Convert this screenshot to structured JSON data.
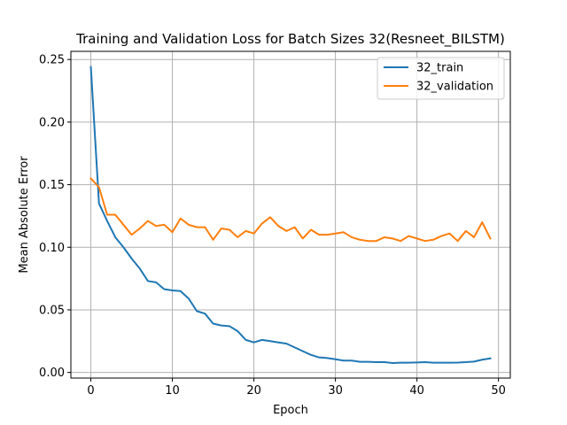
{
  "chart_data": {
    "type": "line",
    "title": "Training and Validation Loss for Batch Sizes 32(Resneet_BILSTM)",
    "xlabel": "Epoch",
    "ylabel": "Mean Absolute Error",
    "xlim": [
      -2.45,
      51.45
    ],
    "ylim": [
      -0.0045,
      0.2565
    ],
    "xticks": [
      0,
      10,
      20,
      30,
      40,
      50
    ],
    "yticks": [
      0.0,
      0.05,
      0.1,
      0.15,
      0.2,
      0.25
    ],
    "ytick_labels": [
      "0.00",
      "0.05",
      "0.10",
      "0.15",
      "0.20",
      "0.25"
    ],
    "grid": true,
    "legend_position": "upper right",
    "x": [
      0,
      1,
      2,
      3,
      4,
      5,
      6,
      7,
      8,
      9,
      10,
      11,
      12,
      13,
      14,
      15,
      16,
      17,
      18,
      19,
      20,
      21,
      22,
      23,
      24,
      25,
      26,
      27,
      28,
      29,
      30,
      31,
      32,
      33,
      34,
      35,
      36,
      37,
      38,
      39,
      40,
      41,
      42,
      43,
      44,
      45,
      46,
      47,
      48,
      49
    ],
    "series": [
      {
        "name": "32_train",
        "color": "#1f77b4",
        "values": [
          0.244,
          0.135,
          0.121,
          0.108,
          0.1,
          0.091,
          0.083,
          0.073,
          0.072,
          0.0665,
          0.0655,
          0.065,
          0.059,
          0.049,
          0.047,
          0.039,
          0.0375,
          0.037,
          0.033,
          0.026,
          0.024,
          0.026,
          0.025,
          0.024,
          0.023,
          0.02,
          0.017,
          0.014,
          0.012,
          0.0115,
          0.0105,
          0.0095,
          0.0095,
          0.0085,
          0.0085,
          0.0082,
          0.0082,
          0.0075,
          0.0078,
          0.0078,
          0.008,
          0.0082,
          0.0078,
          0.0078,
          0.0078,
          0.0079,
          0.0082,
          0.0087,
          0.0102,
          0.0112
        ]
      },
      {
        "name": "32_validation",
        "color": "#ff7f0e",
        "values": [
          0.155,
          0.148,
          0.126,
          0.126,
          0.118,
          0.11,
          0.115,
          0.121,
          0.117,
          0.118,
          0.112,
          0.123,
          0.118,
          0.116,
          0.116,
          0.106,
          0.115,
          0.114,
          0.108,
          0.113,
          0.111,
          0.119,
          0.124,
          0.117,
          0.113,
          0.116,
          0.107,
          0.114,
          0.11,
          0.11,
          0.111,
          0.112,
          0.108,
          0.106,
          0.105,
          0.105,
          0.108,
          0.107,
          0.105,
          0.109,
          0.107,
          0.105,
          0.106,
          0.109,
          0.111,
          0.105,
          0.113,
          0.108,
          0.12,
          0.107
        ]
      }
    ]
  }
}
